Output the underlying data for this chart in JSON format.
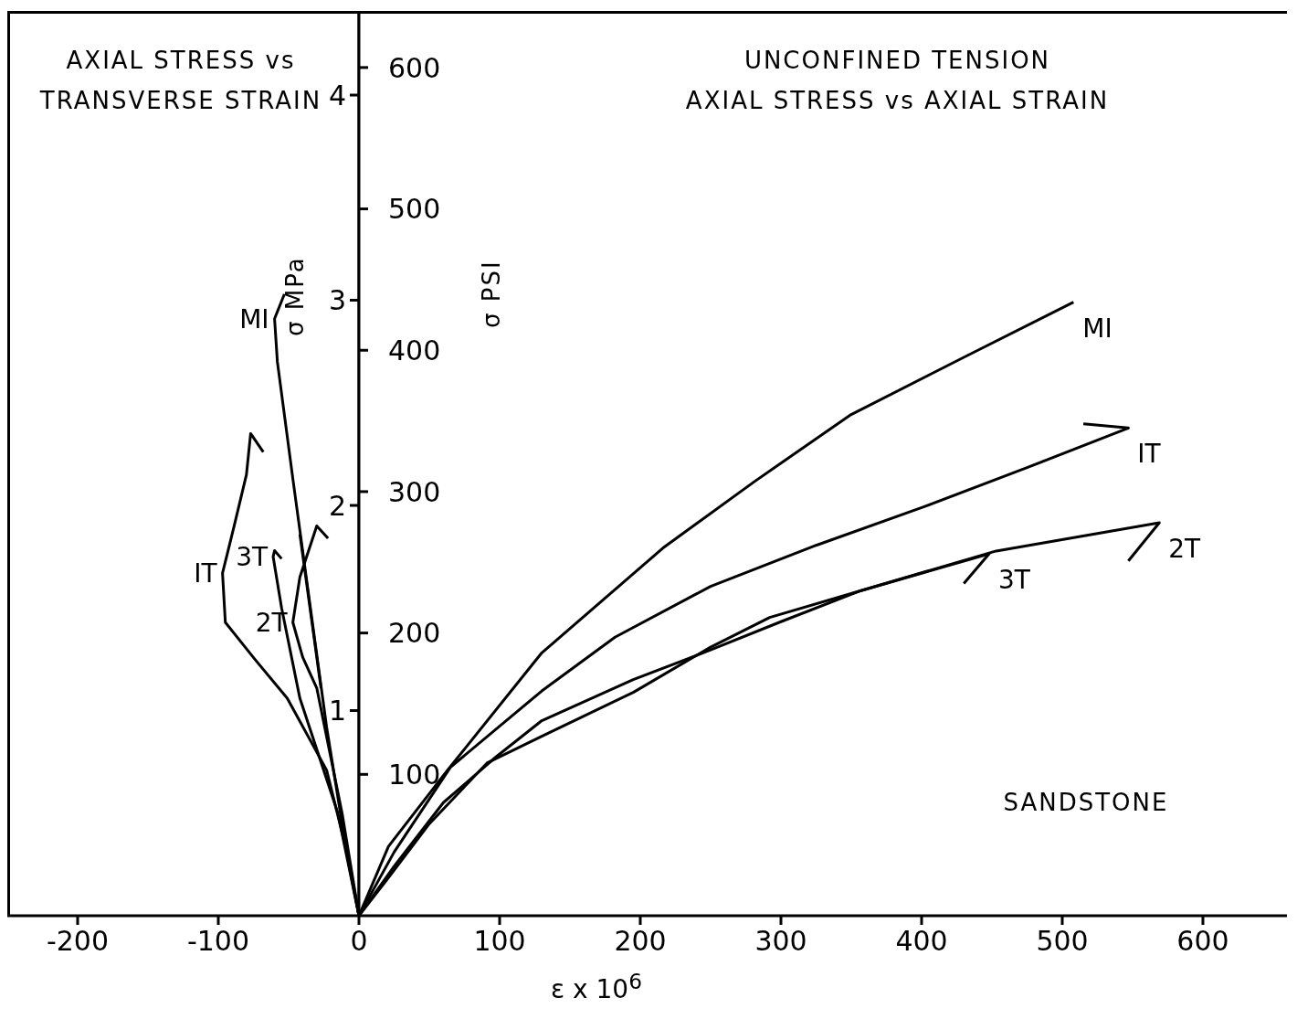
{
  "chart_data": [
    {
      "type": "line",
      "title": "AXIAL STRESS vs TRANSVERSE STRAIN",
      "ylabel": "σ MPa",
      "xlim": [
        -250,
        0
      ],
      "xticks": [
        -200,
        -100
      ],
      "ylim": [
        0,
        4.41
      ],
      "yticks": [
        1,
        2,
        3,
        4
      ],
      "series": [
        {
          "name": "MI",
          "color": "#000000",
          "x": [
            0,
            -12,
            -23,
            -47,
            -58,
            -60,
            -53
          ],
          "values": [
            0,
            0.45,
            0.92,
            2.13,
            2.7,
            2.91,
            3.03
          ]
        },
        {
          "name": "IT",
          "color": "#000000",
          "x": [
            0,
            -10,
            -23,
            -51,
            -74,
            -95,
            -97,
            -88,
            -80,
            -77,
            -68
          ],
          "values": [
            0,
            0.35,
            0.71,
            1.06,
            1.25,
            1.43,
            1.67,
            1.92,
            2.15,
            2.35,
            2.26
          ]
        },
        {
          "name": "3T",
          "color": "#000000",
          "x": [
            0,
            -15,
            -42,
            -55,
            -61,
            -60,
            -55
          ],
          "values": [
            0,
            0.5,
            1.06,
            1.5,
            1.75,
            1.78,
            1.74
          ]
        },
        {
          "name": "2T",
          "color": "#000000",
          "x": [
            0,
            -12,
            -30,
            -40,
            -47,
            -42,
            -30,
            -22,
            -35,
            -42,
            -27
          ],
          "values": [
            0,
            0.5,
            1.11,
            1.26,
            1.43,
            1.65,
            1.9,
            1.84,
            null,
            1.86,
            1.11
          ]
        }
      ]
    },
    {
      "type": "line",
      "title": "UNCONFINED TENSION",
      "subtitle": "AXIAL STRESS vs AXIAL STRAIN",
      "xlabel": "ε x 10$^{6}$",
      "ylabel": "σ PSI",
      "xlim": [
        0,
        660
      ],
      "xticks": [
        0,
        100,
        200,
        300,
        400,
        500,
        600
      ],
      "ylim": [
        0,
        640
      ],
      "yticks": [
        100,
        200,
        300,
        400,
        500,
        600
      ],
      "annotations": [
        "SANDSTONE"
      ],
      "series": [
        {
          "name": "MI",
          "color": "#000000",
          "x": [
            0,
            21,
            63,
            130,
            216,
            281,
            349,
            430,
            508
          ],
          "values": [
            0,
            49,
            103,
            186,
            260,
            307,
            354,
            395,
            434
          ]
        },
        {
          "name": "IT",
          "color": "#000000",
          "x": [
            0,
            25,
            65,
            130,
            182,
            250,
            325,
            401,
            475,
            547,
            515
          ],
          "values": [
            0,
            45,
            105,
            159,
            197,
            233,
            262,
            289,
            317,
            345,
            348
          ]
        },
        {
          "name": "2T",
          "color": "#000000",
          "x": [
            0,
            21,
            50,
            91,
            130,
            195,
            250,
            292,
            357,
            453,
            569,
            547
          ],
          "values": [
            0,
            27,
            65,
            108,
            127,
            158,
            190,
            211,
            230,
            258,
            278,
            251
          ]
        },
        {
          "name": "3T",
          "color": "#000000",
          "x": [
            0,
            25,
            60,
            97,
            130,
            195,
            250,
            300,
            357,
            448,
            430
          ],
          "values": [
            0,
            35,
            80,
            112,
            138,
            167,
            188,
            208,
            230,
            256,
            235
          ]
        }
      ]
    }
  ]
}
